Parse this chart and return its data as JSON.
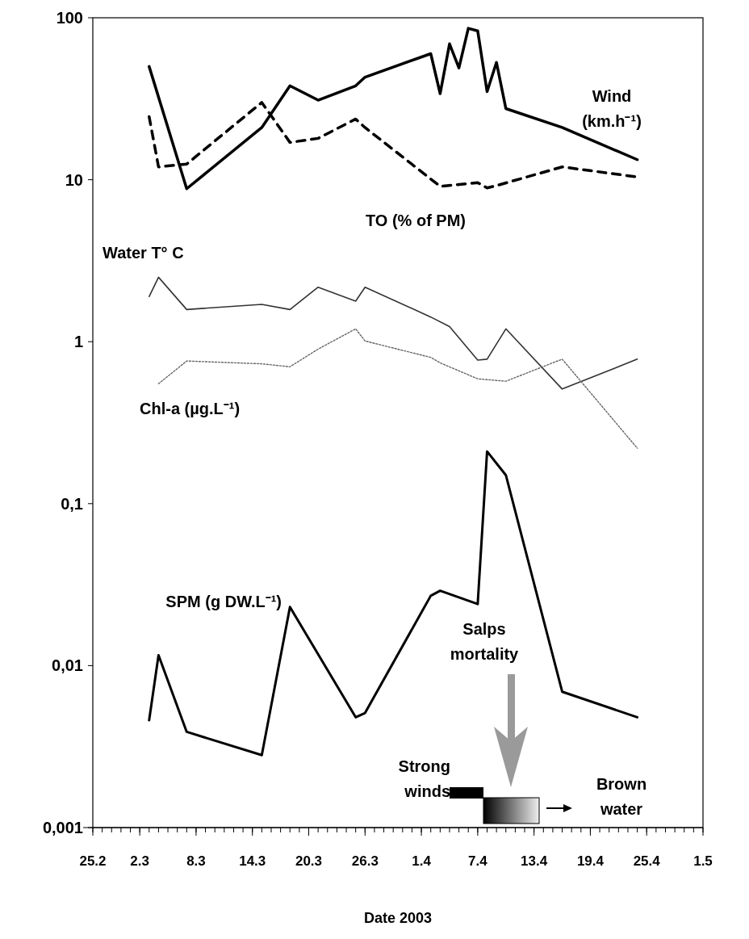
{
  "chart_data": {
    "type": "line",
    "xlabel": "Date 2003",
    "log": "y",
    "grid": false,
    "xlim": [
      "2003-02-25",
      "2003-05-01"
    ],
    "xticks": [
      {
        "value": "2003-02-25",
        "label": "25.2"
      },
      {
        "value": "2003-03-02",
        "label": "2.3"
      },
      {
        "value": "2003-03-08",
        "label": "8.3"
      },
      {
        "value": "2003-03-14",
        "label": "14.3"
      },
      {
        "value": "2003-03-20",
        "label": "20.3"
      },
      {
        "value": "2003-03-26",
        "label": "26.3"
      },
      {
        "value": "2003-04-01",
        "label": "1.4"
      },
      {
        "value": "2003-04-07",
        "label": "7.4"
      },
      {
        "value": "2003-04-13",
        "label": "13.4"
      },
      {
        "value": "2003-04-19",
        "label": "19.4"
      },
      {
        "value": "2003-04-25",
        "label": "25.4"
      },
      {
        "value": "2003-05-01",
        "label": "1.5"
      }
    ],
    "ylim": [
      0.001,
      100
    ],
    "yticks": [
      {
        "value": 0.001,
        "label": "0,001"
      },
      {
        "value": 0.01,
        "label": "0,01"
      },
      {
        "value": 0.1,
        "label": "0,1"
      },
      1,
      10,
      100
    ],
    "series": [
      {
        "name": "Wind (km.h⁻¹)",
        "color": "#000000",
        "line_style": "solid",
        "x": [
          "2003-03-03",
          "2003-03-07",
          "2003-03-15",
          "2003-03-18",
          "2003-03-21",
          "2003-03-25",
          "2003-03-26",
          "2003-04-02",
          "2003-04-03",
          "2003-04-04",
          "2003-04-05",
          "2003-04-06",
          "2003-04-07",
          "2003-04-08",
          "2003-04-09",
          "2003-04-10",
          "2003-04-16",
          "2003-04-24"
        ],
        "values": [
          50,
          8.8,
          21,
          38,
          31,
          38,
          43,
          60,
          34,
          69,
          49,
          86,
          83,
          35,
          53,
          27.5,
          21,
          13.3
        ]
      },
      {
        "name": "TO (% of PM)",
        "color": "#000000",
        "line_style": "dashed",
        "x": [
          "2003-03-03",
          "2003-03-04",
          "2003-03-07",
          "2003-03-15",
          "2003-03-18",
          "2003-03-21",
          "2003-03-25",
          "2003-03-26",
          "2003-04-03",
          "2003-04-07",
          "2003-04-08",
          "2003-04-09",
          "2003-04-16",
          "2003-04-24"
        ],
        "values": [
          24.5,
          12,
          12.5,
          30,
          17,
          18,
          23.7,
          21,
          9.1,
          9.6,
          8.9,
          9.2,
          12,
          10.4
        ]
      },
      {
        "name": "Water T° C",
        "color": "#333333",
        "line_style": "solid",
        "x": [
          "2003-03-03",
          "2003-03-04",
          "2003-03-07",
          "2003-03-15",
          "2003-03-18",
          "2003-03-21",
          "2003-03-25",
          "2003-03-26",
          "2003-04-02",
          "2003-04-04",
          "2003-04-07",
          "2003-04-08",
          "2003-04-10",
          "2003-04-16",
          "2003-04-24"
        ],
        "values": [
          1.9,
          2.5,
          1.58,
          1.7,
          1.58,
          2.17,
          1.78,
          2.17,
          1.42,
          1.24,
          0.77,
          0.78,
          1.2,
          0.51,
          0.78
        ]
      },
      {
        "name": "Chl-a (µg.L⁻¹)",
        "color": "#666666",
        "line_style": "dotted",
        "x": [
          "2003-03-04",
          "2003-03-07",
          "2003-03-15",
          "2003-03-18",
          "2003-03-21",
          "2003-03-25",
          "2003-03-26",
          "2003-04-02",
          "2003-04-03",
          "2003-04-07",
          "2003-04-10",
          "2003-04-16",
          "2003-04-24"
        ],
        "values": [
          0.55,
          0.76,
          0.73,
          0.7,
          0.9,
          1.2,
          1.01,
          0.8,
          0.74,
          0.59,
          0.57,
          0.78,
          0.22
        ]
      },
      {
        "name": "SPM (g DW.L⁻¹)",
        "color": "#000000",
        "line_style": "solid",
        "x": [
          "2003-03-03",
          "2003-03-04",
          "2003-03-07",
          "2003-03-15",
          "2003-03-18",
          "2003-03-25",
          "2003-03-26",
          "2003-04-02",
          "2003-04-03",
          "2003-04-07",
          "2003-04-08",
          "2003-04-10",
          "2003-04-16",
          "2003-04-24"
        ],
        "values": [
          0.0046,
          0.0116,
          0.0039,
          0.0028,
          0.023,
          0.0048,
          0.0051,
          0.027,
          0.029,
          0.024,
          0.21,
          0.15,
          0.0069,
          0.0048
        ]
      }
    ],
    "annotations": [
      "Salps mortality",
      "Strong winds",
      "Brown water"
    ]
  }
}
